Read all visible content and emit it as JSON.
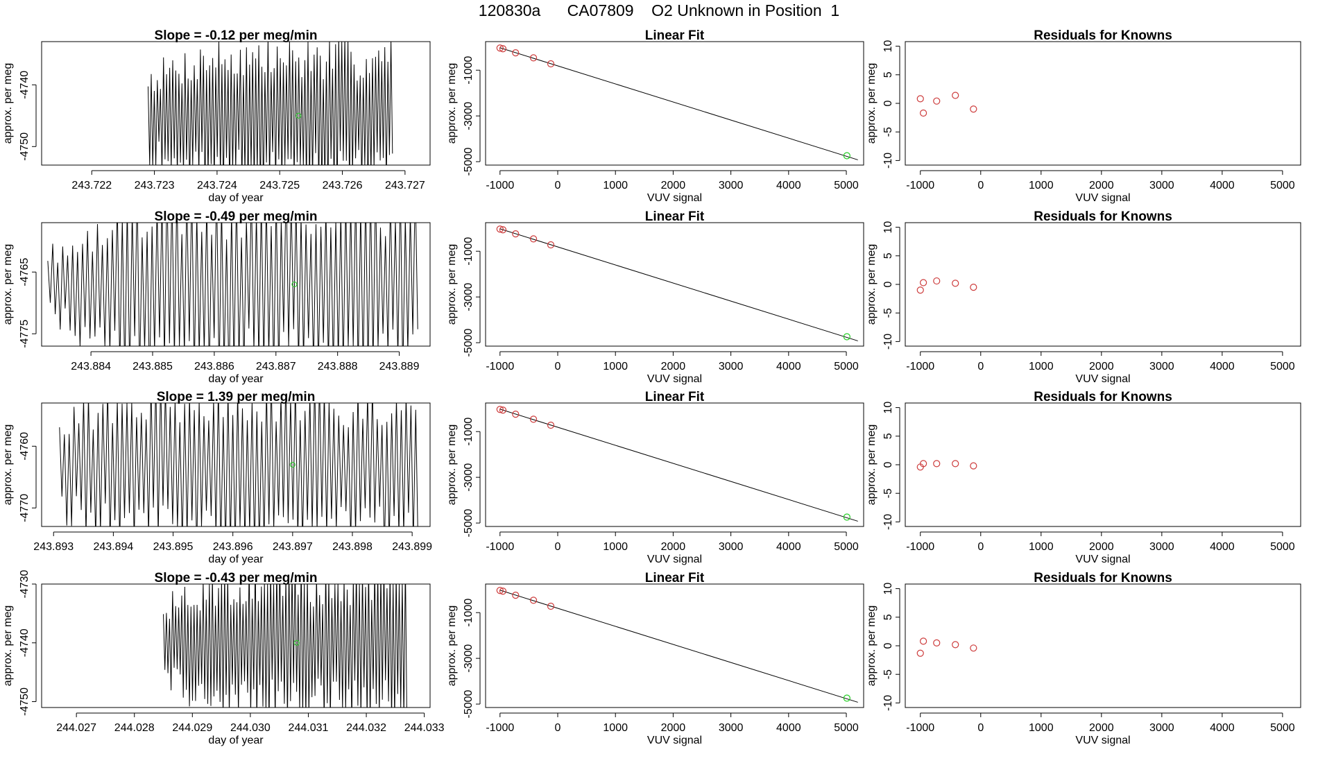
{
  "title": {
    "date": "120830a",
    "cylinder": "CA07809",
    "description": "O2 Unknown in Position  1"
  },
  "colors": {
    "line": "#000000",
    "known": "#cd3b3b",
    "unknown": "#22cc22"
  },
  "chart_data": [
    {
      "type": "line",
      "row": 1,
      "panel": "time-series",
      "title": "Slope =  -0.12  per meg/min",
      "xlabel": "day of year",
      "ylabel": "approx. per meg",
      "xlim": [
        243.7212,
        243.7274
      ],
      "ylim": [
        -4753,
        -4733
      ],
      "xticks": [
        243.722,
        243.723,
        243.724,
        243.725,
        243.726,
        243.727
      ],
      "xtick_labels": [
        "243.722",
        "243.723",
        "243.724",
        "243.725",
        "243.726",
        "243.727"
      ],
      "yticks": [
        -4740,
        -4750
      ],
      "ytick_labels": [
        "-4740",
        "-4750"
      ],
      "series": {
        "x_start": 243.7229,
        "x_end": 243.7268,
        "points": 160,
        "center": -4745,
        "amp": 10,
        "env_start": 0.65,
        "seed": 7
      },
      "unknown_point": {
        "x": 243.7253,
        "y": -4745
      }
    },
    {
      "type": "scatter",
      "row": 1,
      "panel": "linear-fit",
      "title": "Linear Fit",
      "xlabel": "VUV signal",
      "ylabel": "approx. per meg",
      "xlim": [
        -1250,
        5300
      ],
      "ylim": [
        -5150,
        250
      ],
      "xticks": [
        -1000,
        0,
        1000,
        2000,
        3000,
        4000,
        5000
      ],
      "xtick_labels": [
        "-1000",
        "0",
        "1000",
        "2000",
        "3000",
        "4000",
        "5000"
      ],
      "yticks": [
        -1000,
        -3000,
        -5000
      ],
      "ytick_labels": [
        "-1000",
        "-3000",
        "-5000"
      ],
      "knowns": {
        "x": [
          -1000,
          -950,
          -730,
          -420,
          -120
        ],
        "y": [
          -30,
          -60,
          -240,
          -460,
          -720
        ]
      },
      "fit_line": {
        "x": [
          -1000,
          5200
        ],
        "y": [
          -20,
          -4920
        ]
      },
      "unknown_point": {
        "x": 5010,
        "y": -4740
      }
    },
    {
      "type": "scatter",
      "row": 1,
      "panel": "residuals",
      "title": "Residuals for Knowns",
      "xlabel": "VUV signal",
      "ylabel": "approx. per meg",
      "xlim": [
        -1250,
        5300
      ],
      "ylim": [
        -10.8,
        10.8
      ],
      "xticks": [
        -1000,
        0,
        1000,
        2000,
        3000,
        4000,
        5000
      ],
      "xtick_labels": [
        "-1000",
        "0",
        "1000",
        "2000",
        "3000",
        "4000",
        "5000"
      ],
      "yticks": [
        10,
        5,
        0,
        -5,
        -10
      ],
      "ytick_labels": [
        "10",
        "5",
        "0",
        "-5",
        "-10"
      ],
      "x": [
        -1000,
        -950,
        -730,
        -420,
        -120
      ],
      "y": [
        0.8,
        -1.7,
        0.4,
        1.4,
        -1.0
      ]
    },
    {
      "type": "line",
      "row": 2,
      "panel": "time-series",
      "title": "Slope =  -0.49  per meg/min",
      "xlabel": "day of year",
      "ylabel": "approx. per meg",
      "xlim": [
        243.8832,
        243.8895
      ],
      "ylim": [
        -4777,
        -4757
      ],
      "xticks": [
        243.884,
        243.885,
        243.886,
        243.887,
        243.888,
        243.889
      ],
      "xtick_labels": [
        "243.884",
        "243.885",
        "243.886",
        "243.887",
        "243.888",
        "243.889"
      ],
      "yticks": [
        -4765,
        -4775
      ],
      "ytick_labels": [
        "-4765",
        "-4775"
      ],
      "series": {
        "x_start": 243.8833,
        "x_end": 243.8893,
        "points": 150,
        "center": -4767,
        "amp": 13,
        "env_start": 0.4,
        "seed": 19
      },
      "unknown_point": {
        "x": 243.8873,
        "y": -4767
      }
    },
    {
      "type": "scatter",
      "row": 2,
      "panel": "linear-fit",
      "title": "Linear Fit",
      "xlabel": "VUV signal",
      "ylabel": "approx. per meg",
      "xlim": [
        -1250,
        5300
      ],
      "ylim": [
        -5150,
        250
      ],
      "xticks": [
        -1000,
        0,
        1000,
        2000,
        3000,
        4000,
        5000
      ],
      "xtick_labels": [
        "-1000",
        "0",
        "1000",
        "2000",
        "3000",
        "4000",
        "5000"
      ],
      "yticks": [
        -1000,
        -3000,
        -5000
      ],
      "ytick_labels": [
        "-1000",
        "-3000",
        "-5000"
      ],
      "knowns": {
        "x": [
          -1000,
          -950,
          -730,
          -420,
          -120
        ],
        "y": [
          -30,
          -60,
          -240,
          -460,
          -720
        ]
      },
      "fit_line": {
        "x": [
          -1000,
          5200
        ],
        "y": [
          -20,
          -4920
        ]
      },
      "unknown_point": {
        "x": 5010,
        "y": -4740
      }
    },
    {
      "type": "scatter",
      "row": 2,
      "panel": "residuals",
      "title": "Residuals for Knowns",
      "xlabel": "VUV signal",
      "ylabel": "approx. per meg",
      "xlim": [
        -1250,
        5300
      ],
      "ylim": [
        -10.8,
        10.8
      ],
      "xticks": [
        -1000,
        0,
        1000,
        2000,
        3000,
        4000,
        5000
      ],
      "xtick_labels": [
        "-1000",
        "0",
        "1000",
        "2000",
        "3000",
        "4000",
        "5000"
      ],
      "yticks": [
        10,
        5,
        0,
        -5,
        -10
      ],
      "ytick_labels": [
        "10",
        "5",
        "0",
        "-5",
        "-10"
      ],
      "x": [
        -1000,
        -950,
        -730,
        -420,
        -120
      ],
      "y": [
        -1.0,
        0.3,
        0.6,
        0.2,
        -0.5
      ]
    },
    {
      "type": "line",
      "row": 3,
      "panel": "time-series",
      "title": "Slope =  1.39  per meg/min",
      "xlabel": "day of year",
      "ylabel": "approx. per meg",
      "xlim": [
        243.8928,
        243.8993
      ],
      "ylim": [
        -4773,
        -4753
      ],
      "xticks": [
        243.893,
        243.894,
        243.895,
        243.896,
        243.897,
        243.898,
        243.899
      ],
      "xtick_labels": [
        "243.893",
        "243.894",
        "243.895",
        "243.896",
        "243.897",
        "243.898",
        "243.899"
      ],
      "yticks": [
        -4760,
        -4770
      ],
      "ytick_labels": [
        "-4760",
        "-4770"
      ],
      "series": {
        "x_start": 243.8931,
        "x_end": 243.8991,
        "points": 150,
        "center": -4763,
        "amp": 11,
        "env_start": 0.75,
        "seed": 31
      },
      "unknown_point": {
        "x": 243.897,
        "y": -4763
      }
    },
    {
      "type": "scatter",
      "row": 3,
      "panel": "linear-fit",
      "title": "Linear Fit",
      "xlabel": "VUV signal",
      "ylabel": "approx. per meg",
      "xlim": [
        -1250,
        5300
      ],
      "ylim": [
        -5150,
        250
      ],
      "xticks": [
        -1000,
        0,
        1000,
        2000,
        3000,
        4000,
        5000
      ],
      "xtick_labels": [
        "-1000",
        "0",
        "1000",
        "2000",
        "3000",
        "4000",
        "5000"
      ],
      "yticks": [
        -1000,
        -3000,
        -5000
      ],
      "ytick_labels": [
        "-1000",
        "-3000",
        "-5000"
      ],
      "knowns": {
        "x": [
          -1000,
          -950,
          -730,
          -420,
          -120
        ],
        "y": [
          -30,
          -60,
          -240,
          -460,
          -720
        ]
      },
      "fit_line": {
        "x": [
          -1000,
          5200
        ],
        "y": [
          -20,
          -4920
        ]
      },
      "unknown_point": {
        "x": 5010,
        "y": -4740
      }
    },
    {
      "type": "scatter",
      "row": 3,
      "panel": "residuals",
      "title": "Residuals for Knowns",
      "xlabel": "VUV signal",
      "ylabel": "approx. per meg",
      "xlim": [
        -1250,
        5300
      ],
      "ylim": [
        -10.8,
        10.8
      ],
      "xticks": [
        -1000,
        0,
        1000,
        2000,
        3000,
        4000,
        5000
      ],
      "xtick_labels": [
        "-1000",
        "0",
        "1000",
        "2000",
        "3000",
        "4000",
        "5000"
      ],
      "yticks": [
        10,
        5,
        0,
        -5,
        -10
      ],
      "ytick_labels": [
        "10",
        "5",
        "0",
        "-5",
        "-10"
      ],
      "x": [
        -1000,
        -950,
        -730,
        -420,
        -120
      ],
      "y": [
        -0.4,
        0.2,
        0.2,
        0.2,
        -0.2
      ]
    },
    {
      "type": "line",
      "row": 4,
      "panel": "time-series",
      "title": "Slope =  -0.43  per meg/min",
      "xlabel": "day of year",
      "ylabel": "approx. per meg",
      "xlim": [
        244.0264,
        244.0331
      ],
      "ylim": [
        -4751,
        -4730
      ],
      "xticks": [
        244.027,
        244.028,
        244.029,
        244.03,
        244.031,
        244.032,
        244.033
      ],
      "xtick_labels": [
        "244.027",
        "244.028",
        "244.029",
        "244.030",
        "244.031",
        "244.032",
        "244.033"
      ],
      "yticks": [
        -4730,
        -4740,
        -4750
      ],
      "ytick_labels": [
        "-4730",
        "-4740",
        "-4750"
      ],
      "series": {
        "x_start": 244.0285,
        "x_end": 244.0327,
        "points": 160,
        "center": -4740,
        "amp": 11,
        "env_start": 0.6,
        "seed": 43
      },
      "unknown_point": {
        "x": 244.0308,
        "y": -4740
      }
    },
    {
      "type": "scatter",
      "row": 4,
      "panel": "linear-fit",
      "title": "Linear Fit",
      "xlabel": "VUV signal",
      "ylabel": "approx. per meg",
      "xlim": [
        -1250,
        5300
      ],
      "ylim": [
        -5150,
        250
      ],
      "xticks": [
        -1000,
        0,
        1000,
        2000,
        3000,
        4000,
        5000
      ],
      "xtick_labels": [
        "-1000",
        "0",
        "1000",
        "2000",
        "3000",
        "4000",
        "5000"
      ],
      "yticks": [
        -1000,
        -3000,
        -5000
      ],
      "ytick_labels": [
        "-1000",
        "-3000",
        "-5000"
      ],
      "knowns": {
        "x": [
          -1000,
          -950,
          -730,
          -420,
          -120
        ],
        "y": [
          -30,
          -60,
          -240,
          -460,
          -720
        ]
      },
      "fit_line": {
        "x": [
          -1000,
          5200
        ],
        "y": [
          -20,
          -4920
        ]
      },
      "unknown_point": {
        "x": 5010,
        "y": -4740
      }
    },
    {
      "type": "scatter",
      "row": 4,
      "panel": "residuals",
      "title": "Residuals for Knowns",
      "xlabel": "VUV signal",
      "ylabel": "approx. per meg",
      "xlim": [
        -1250,
        5300
      ],
      "ylim": [
        -10.8,
        10.8
      ],
      "xticks": [
        -1000,
        0,
        1000,
        2000,
        3000,
        4000,
        5000
      ],
      "xtick_labels": [
        "-1000",
        "0",
        "1000",
        "2000",
        "3000",
        "4000",
        "5000"
      ],
      "yticks": [
        10,
        5,
        0,
        -5,
        -10
      ],
      "ytick_labels": [
        "10",
        "5",
        "0",
        "-5",
        "-10"
      ],
      "x": [
        -1000,
        -950,
        -730,
        -420,
        -120
      ],
      "y": [
        -1.3,
        0.8,
        0.5,
        0.2,
        -0.4
      ]
    }
  ]
}
